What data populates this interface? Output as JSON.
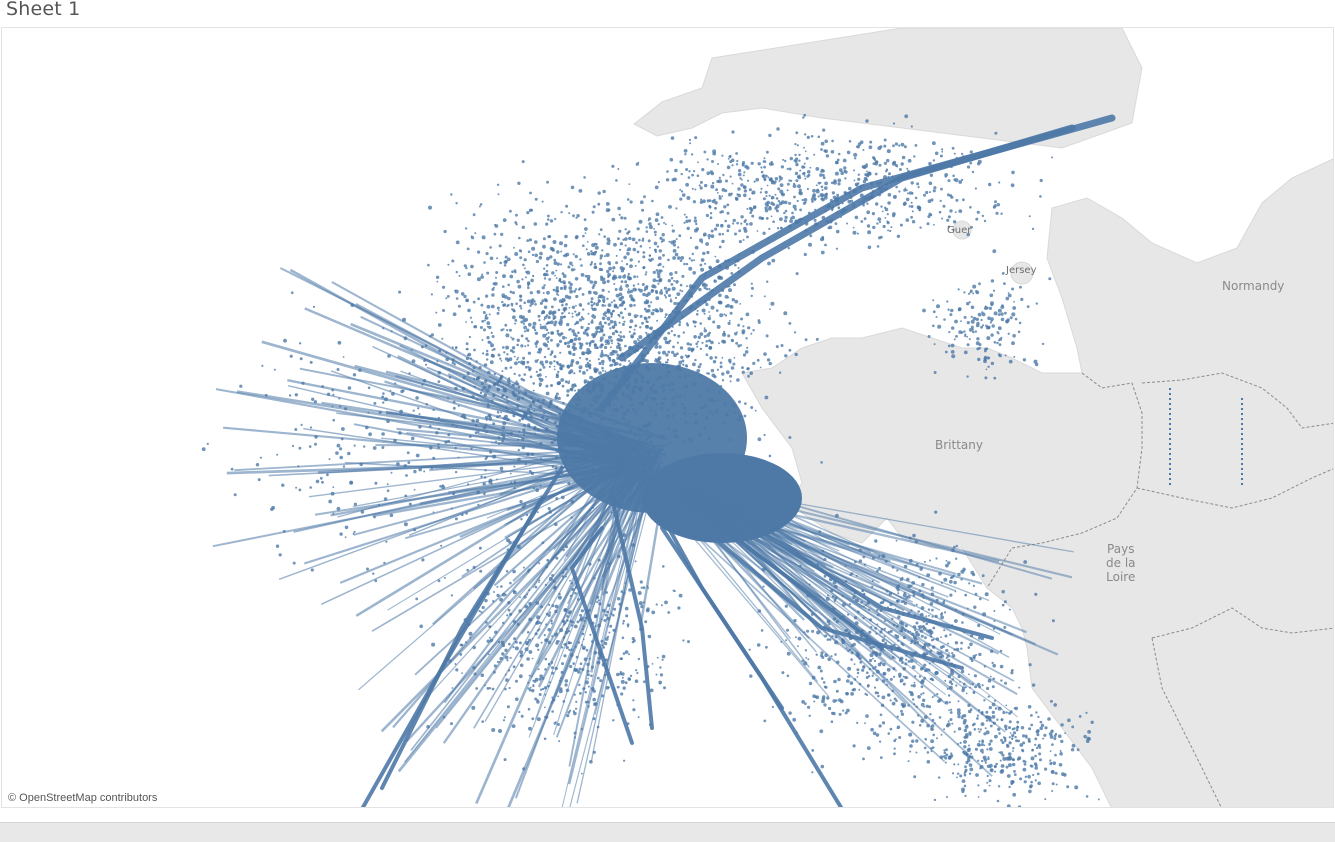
{
  "sheet": {
    "title": "Sheet 1"
  },
  "map": {
    "attribution": "© OpenStreetMap contributors",
    "labels": {
      "normandy": "Normandy",
      "brittany": "Brittany",
      "pays_de_la_loire": [
        "Pays",
        "de la",
        "Loire"
      ],
      "guernsey": "Guer",
      "jersey": "Jersey"
    },
    "mark_color": "#4e79a7",
    "land_color": "#e7e7e7",
    "sea_color": "#ffffff",
    "border_color": "#8c8c8c"
  }
}
